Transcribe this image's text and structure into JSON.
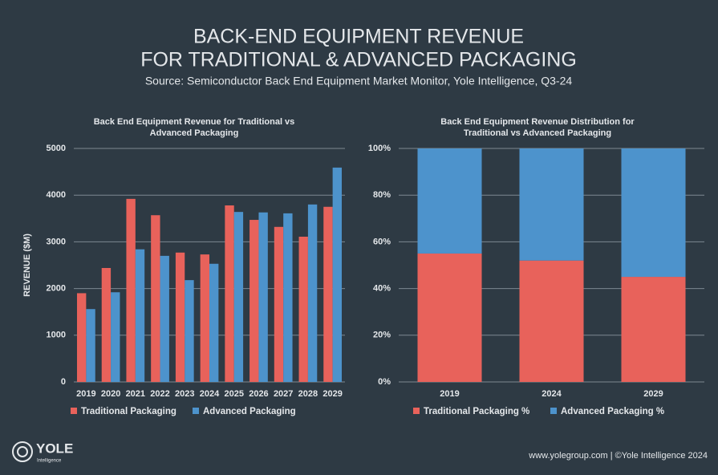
{
  "header": {
    "title": [
      "BACK-END EQUIPMENT REVENUE",
      "FOR TRADITIONAL & ADVANCED PACKAGING"
    ],
    "subtitle": "Source: Semiconductor Back End Equipment Market Monitor, Yole Intelligence, Q3-24"
  },
  "chart_data": [
    {
      "type": "bar",
      "title": [
        "Back End Equipment Revenue for Traditional vs",
        "Advanced Packaging"
      ],
      "ylabel": "REVENUE ($M)",
      "categories": [
        "2019",
        "2020",
        "2021",
        "2022",
        "2023",
        "2024",
        "2025",
        "2026",
        "2027",
        "2028",
        "2029"
      ],
      "series": [
        {
          "name": "Traditional Packaging",
          "color": "#e8625b",
          "values": [
            1900,
            2440,
            3920,
            3570,
            2770,
            2730,
            3780,
            3470,
            3320,
            3110,
            3750
          ]
        },
        {
          "name": "Advanced Packaging",
          "color": "#4d93cc",
          "values": [
            1560,
            1920,
            2840,
            2700,
            2180,
            2530,
            3640,
            3630,
            3610,
            3800,
            4590
          ]
        }
      ],
      "ylim": [
        0,
        5000
      ],
      "yticks": [
        0,
        1000,
        2000,
        3000,
        4000,
        5000
      ],
      "grid": true,
      "legend": "bottom"
    },
    {
      "type": "stacked_bar",
      "title": [
        "Back End Equipment Revenue Distribution for",
        "Traditional vs Advanced Packaging"
      ],
      "categories": [
        "2019",
        "2024",
        "2029"
      ],
      "series": [
        {
          "name": "Traditional Packaging %",
          "color": "#e8625b",
          "values": [
            55,
            52,
            45
          ]
        },
        {
          "name": "Advanced Packaging %",
          "color": "#4d93cc",
          "values": [
            45,
            48,
            55
          ]
        }
      ],
      "ylim": [
        0,
        100
      ],
      "yticks": [
        {
          "value": 0,
          "label": "0%"
        },
        {
          "value": 20,
          "label": "20%"
        },
        {
          "value": 40,
          "label": "40%"
        },
        {
          "value": 60,
          "label": "60%"
        },
        {
          "value": 80,
          "label": "80%"
        },
        {
          "value": 100,
          "label": "100%"
        }
      ],
      "grid": true,
      "legend": "bottom"
    }
  ],
  "footer": {
    "logo": "YOLE",
    "logo_sub": "Intelligence",
    "credit": "www.yolegroup.com | ©Yole Intelligence 2024"
  }
}
